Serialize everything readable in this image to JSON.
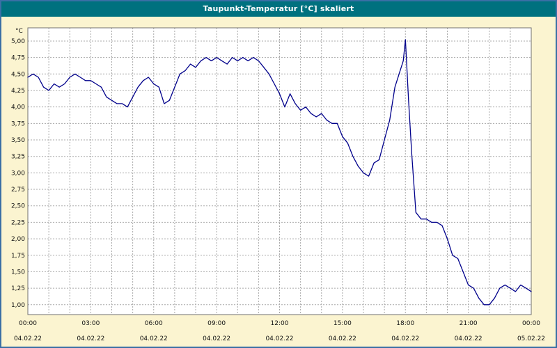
{
  "title": "Taupunkt-Temperatur [°C] skaliert",
  "colors": {
    "title_bar": "#00717f",
    "title_text": "#ffffff",
    "background": "#fbf4d0",
    "plot_bg": "#ffffff",
    "grid": "#a9a9a9",
    "plot_border": "#707070",
    "frame_border": "#3a6fa5",
    "line": "#00008b",
    "tick_text": "#111111"
  },
  "chart_data": {
    "type": "line",
    "title": "Taupunkt-Temperatur [°C] skaliert",
    "xlabel": "",
    "ylabel": "°C",
    "ylim": [
      0.85,
      5.2
    ],
    "xlim": [
      0,
      24
    ],
    "grid": "dashed gray, vertical every hour, horizontal every 0.25 °C",
    "legend": "none",
    "y_ticks": [
      {
        "v": 5.0,
        "label": "5,00"
      },
      {
        "v": 4.75,
        "label": "4,75"
      },
      {
        "v": 4.5,
        "label": "4,50"
      },
      {
        "v": 4.25,
        "label": "4,25"
      },
      {
        "v": 4.0,
        "label": "4,00"
      },
      {
        "v": 3.75,
        "label": "3,75"
      },
      {
        "v": 3.5,
        "label": "3,50"
      },
      {
        "v": 3.25,
        "label": "3,25"
      },
      {
        "v": 3.0,
        "label": "3,00"
      },
      {
        "v": 2.75,
        "label": "2,75"
      },
      {
        "v": 2.5,
        "label": "2,50"
      },
      {
        "v": 2.25,
        "label": "2,25"
      },
      {
        "v": 2.0,
        "label": "2,00"
      },
      {
        "v": 1.75,
        "label": "1,75"
      },
      {
        "v": 1.5,
        "label": "1,50"
      },
      {
        "v": 1.25,
        "label": "1,25"
      },
      {
        "v": 1.0,
        "label": "1,00"
      }
    ],
    "x_ticks": [
      {
        "h": 0,
        "time": "00:00",
        "date": "04.02.22"
      },
      {
        "h": 3,
        "time": "03:00",
        "date": "04.02.22"
      },
      {
        "h": 6,
        "time": "06:00",
        "date": "04.02.22"
      },
      {
        "h": 9,
        "time": "09:00",
        "date": "04.02.22"
      },
      {
        "h": 12,
        "time": "12:00",
        "date": "04.02.22"
      },
      {
        "h": 15,
        "time": "15:00",
        "date": "04.02.22"
      },
      {
        "h": 18,
        "time": "18:00",
        "date": "04.02.22"
      },
      {
        "h": 21,
        "time": "21:00",
        "date": "04.02.22"
      },
      {
        "h": 24,
        "time": "00:00",
        "date": "05.02.22"
      }
    ],
    "series": [
      {
        "name": "Taupunkt-Temperatur",
        "color": "#00008b",
        "points": [
          [
            0.0,
            4.45
          ],
          [
            0.25,
            4.5
          ],
          [
            0.5,
            4.45
          ],
          [
            0.75,
            4.3
          ],
          [
            1.0,
            4.25
          ],
          [
            1.25,
            4.35
          ],
          [
            1.5,
            4.3
          ],
          [
            1.75,
            4.35
          ],
          [
            2.0,
            4.45
          ],
          [
            2.25,
            4.5
          ],
          [
            2.5,
            4.45
          ],
          [
            2.75,
            4.4
          ],
          [
            3.0,
            4.4
          ],
          [
            3.25,
            4.35
          ],
          [
            3.5,
            4.3
          ],
          [
            3.75,
            4.15
          ],
          [
            4.0,
            4.1
          ],
          [
            4.25,
            4.05
          ],
          [
            4.5,
            4.05
          ],
          [
            4.75,
            4.0
          ],
          [
            5.0,
            4.15
          ],
          [
            5.25,
            4.3
          ],
          [
            5.5,
            4.4
          ],
          [
            5.75,
            4.45
          ],
          [
            6.0,
            4.35
          ],
          [
            6.25,
            4.3
          ],
          [
            6.5,
            4.05
          ],
          [
            6.75,
            4.1
          ],
          [
            7.0,
            4.3
          ],
          [
            7.25,
            4.5
          ],
          [
            7.5,
            4.55
          ],
          [
            7.75,
            4.65
          ],
          [
            8.0,
            4.6
          ],
          [
            8.25,
            4.7
          ],
          [
            8.5,
            4.75
          ],
          [
            8.75,
            4.7
          ],
          [
            9.0,
            4.75
          ],
          [
            9.25,
            4.7
          ],
          [
            9.5,
            4.65
          ],
          [
            9.75,
            4.75
          ],
          [
            10.0,
            4.7
          ],
          [
            10.25,
            4.75
          ],
          [
            10.5,
            4.7
          ],
          [
            10.75,
            4.75
          ],
          [
            11.0,
            4.7
          ],
          [
            11.25,
            4.6
          ],
          [
            11.5,
            4.5
          ],
          [
            11.75,
            4.35
          ],
          [
            12.0,
            4.2
          ],
          [
            12.25,
            4.0
          ],
          [
            12.5,
            4.2
          ],
          [
            12.75,
            4.05
          ],
          [
            13.0,
            3.95
          ],
          [
            13.25,
            4.0
          ],
          [
            13.5,
            3.9
          ],
          [
            13.75,
            3.85
          ],
          [
            14.0,
            3.9
          ],
          [
            14.25,
            3.8
          ],
          [
            14.5,
            3.75
          ],
          [
            14.75,
            3.75
          ],
          [
            15.0,
            3.55
          ],
          [
            15.25,
            3.45
          ],
          [
            15.5,
            3.25
          ],
          [
            15.75,
            3.1
          ],
          [
            16.0,
            3.0
          ],
          [
            16.25,
            2.95
          ],
          [
            16.5,
            3.15
          ],
          [
            16.75,
            3.2
          ],
          [
            17.0,
            3.5
          ],
          [
            17.25,
            3.8
          ],
          [
            17.5,
            4.3
          ],
          [
            17.75,
            4.55
          ],
          [
            17.9,
            4.7
          ],
          [
            18.0,
            5.02
          ],
          [
            18.15,
            4.1
          ],
          [
            18.3,
            3.3
          ],
          [
            18.5,
            2.4
          ],
          [
            18.75,
            2.3
          ],
          [
            19.0,
            2.3
          ],
          [
            19.25,
            2.25
          ],
          [
            19.5,
            2.25
          ],
          [
            19.75,
            2.2
          ],
          [
            20.0,
            2.0
          ],
          [
            20.25,
            1.75
          ],
          [
            20.5,
            1.7
          ],
          [
            20.75,
            1.5
          ],
          [
            21.0,
            1.3
          ],
          [
            21.25,
            1.25
          ],
          [
            21.5,
            1.1
          ],
          [
            21.75,
            1.0
          ],
          [
            22.0,
            1.0
          ],
          [
            22.25,
            1.1
          ],
          [
            22.5,
            1.25
          ],
          [
            22.75,
            1.3
          ],
          [
            23.0,
            1.25
          ],
          [
            23.25,
            1.2
          ],
          [
            23.5,
            1.3
          ],
          [
            23.75,
            1.25
          ],
          [
            24.0,
            1.2
          ]
        ]
      }
    ]
  }
}
